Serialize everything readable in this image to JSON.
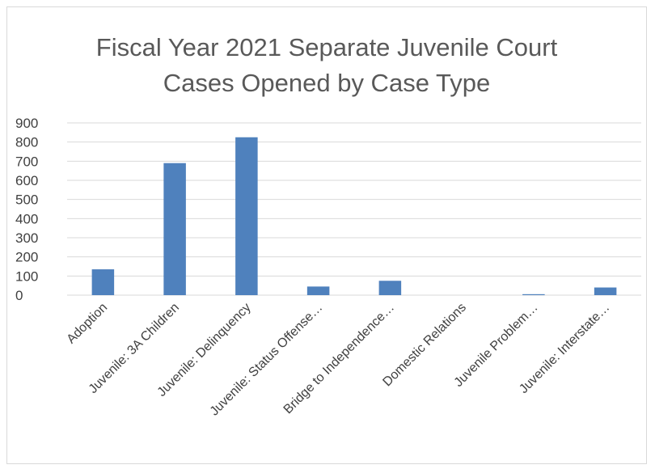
{
  "chart_data": {
    "type": "bar",
    "title_lines": [
      "Fiscal Year 2021 Separate Juvenile Court",
      "Cases Opened by Case Type"
    ],
    "categories": [
      "Adoption",
      "Juvenile: 3A Children",
      "Juvenile: Delinquency",
      "Juvenile: Status Offense…",
      "Bridge to Independence…",
      "Domestic Relations",
      "Juvenile Problem…",
      "Juvenile: Interstate…"
    ],
    "values": [
      135,
      690,
      825,
      45,
      75,
      0,
      5,
      40
    ],
    "ylim": [
      0,
      900
    ],
    "yticks": [
      "0",
      "100",
      "200",
      "300",
      "400",
      "500",
      "600",
      "700",
      "800",
      "900"
    ],
    "grid": true,
    "legend": "none",
    "bar_color": "#4f81bd"
  }
}
